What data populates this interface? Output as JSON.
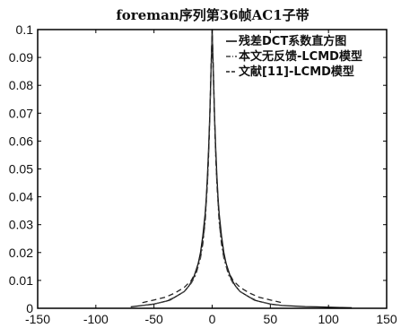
{
  "chart_data": {
    "type": "line",
    "title": "foreman序列第36帧AC1子带",
    "xlabel": "",
    "ylabel": "",
    "xlim": [
      -150,
      150
    ],
    "ylim": [
      0,
      0.1
    ],
    "x_ticks": [
      "-150",
      "-100",
      "-50",
      "0",
      "50",
      "100",
      "150"
    ],
    "y_ticks": [
      "0",
      "0.01",
      "0.02",
      "0.03",
      "0.04",
      "0.05",
      "0.06",
      "0.07",
      "0.08",
      "0.09",
      "0.1"
    ],
    "grid": false,
    "legend_position": "top-right",
    "series": [
      {
        "name": "残差DCT系数直方图",
        "style": "solid",
        "color": "#111111",
        "x": [
          -70,
          -60,
          -50,
          -45,
          -40,
          -36,
          -32,
          -28,
          -24,
          -20,
          -16,
          -12,
          -10,
          -8,
          -6,
          -5,
          -4,
          -3,
          -2,
          -1,
          0,
          1,
          2,
          3,
          4,
          5,
          6,
          8,
          10,
          12,
          16,
          20,
          24,
          28,
          32,
          36,
          40,
          45,
          50,
          60,
          70,
          80,
          90,
          100,
          110,
          120
        ],
        "y": [
          0.0005,
          0.001,
          0.0015,
          0.002,
          0.0025,
          0.003,
          0.004,
          0.005,
          0.006,
          0.008,
          0.011,
          0.016,
          0.02,
          0.026,
          0.034,
          0.04,
          0.048,
          0.058,
          0.07,
          0.085,
          0.1,
          0.085,
          0.07,
          0.058,
          0.048,
          0.04,
          0.034,
          0.026,
          0.02,
          0.016,
          0.011,
          0.008,
          0.006,
          0.005,
          0.004,
          0.003,
          0.0025,
          0.002,
          0.0015,
          0.001,
          0.0008,
          0.0006,
          0.0005,
          0.0004,
          0.0003,
          0.0002
        ]
      },
      {
        "name": "本文无反馈-LCMD模型",
        "style": "dash-dot",
        "color": "#444444",
        "x": [
          -60,
          -50,
          -40,
          -32,
          -24,
          -18,
          -14,
          -10,
          -8,
          -6,
          -4,
          -3,
          -2,
          -1,
          0,
          1,
          2,
          3,
          4,
          6,
          8,
          10,
          14,
          18,
          24,
          32,
          40,
          50,
          60
        ],
        "y": [
          0.001,
          0.0015,
          0.0025,
          0.004,
          0.006,
          0.009,
          0.012,
          0.018,
          0.023,
          0.031,
          0.045,
          0.055,
          0.068,
          0.083,
          0.098,
          0.083,
          0.068,
          0.055,
          0.045,
          0.031,
          0.023,
          0.018,
          0.012,
          0.009,
          0.006,
          0.004,
          0.0025,
          0.0015,
          0.001
        ]
      },
      {
        "name": "文献[11]-LCMD模型",
        "style": "dashed",
        "color": "#222222",
        "x": [
          -60,
          -50,
          -40,
          -32,
          -24,
          -18,
          -14,
          -10,
          -8,
          -6,
          -4,
          -3,
          -2,
          -1,
          0,
          1,
          2,
          3,
          4,
          6,
          8,
          10,
          14,
          18,
          24,
          32,
          40,
          50,
          60
        ],
        "y": [
          0.002,
          0.003,
          0.004,
          0.0055,
          0.0075,
          0.01,
          0.013,
          0.019,
          0.024,
          0.032,
          0.046,
          0.056,
          0.069,
          0.086,
          0.1,
          0.086,
          0.069,
          0.056,
          0.046,
          0.032,
          0.024,
          0.019,
          0.013,
          0.01,
          0.0075,
          0.0055,
          0.004,
          0.003,
          0.002
        ]
      }
    ]
  }
}
